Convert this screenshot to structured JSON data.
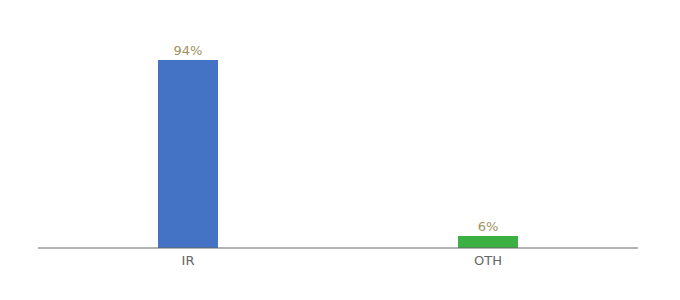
{
  "chart_data": {
    "type": "bar",
    "categories": [
      "IR",
      "OTH"
    ],
    "values": [
      94,
      6
    ],
    "value_labels": [
      "94%",
      "6%"
    ],
    "colors": [
      "#4472c4",
      "#3cb043"
    ],
    "ylim": [
      0,
      108
    ],
    "data_labels": true,
    "tick_labels": "x"
  }
}
